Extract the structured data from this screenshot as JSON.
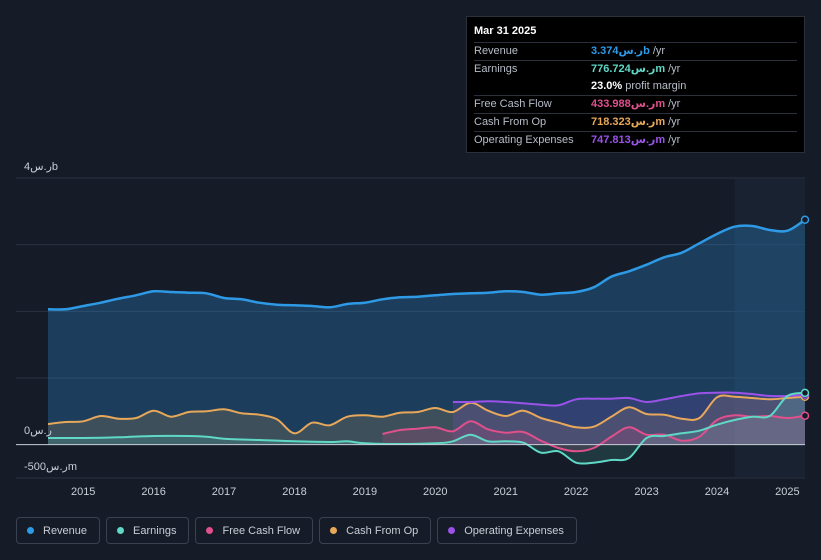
{
  "tooltip": {
    "date": "Mar 31 2025",
    "rows": [
      {
        "label": "Revenue",
        "value": "3.374ر.سb",
        "unit": "/yr",
        "color": "#2e9ae6"
      },
      {
        "label": "Earnings",
        "value": "776.724ر.سm",
        "unit": "/yr",
        "color": "#5fd9c6"
      },
      {
        "label": "",
        "value": "23.0%",
        "unit": "profit margin",
        "color": "#ffffff"
      },
      {
        "label": "Free Cash Flow",
        "value": "433.988ر.سm",
        "unit": "/yr",
        "color": "#e0508c"
      },
      {
        "label": "Cash From Op",
        "value": "718.323ر.سm",
        "unit": "/yr",
        "color": "#e8a85a"
      },
      {
        "label": "Operating Expenses",
        "value": "747.813ر.سm",
        "unit": "/yr",
        "color": "#9a52e8"
      }
    ]
  },
  "legend": [
    {
      "label": "Revenue",
      "color": "#2e9ae6"
    },
    {
      "label": "Earnings",
      "color": "#5fd9c6"
    },
    {
      "label": "Free Cash Flow",
      "color": "#e0508c"
    },
    {
      "label": "Cash From Op",
      "color": "#e8a85a"
    },
    {
      "label": "Operating Expenses",
      "color": "#9a52e8"
    }
  ],
  "chart_data": {
    "type": "line",
    "title": "",
    "xlabel": "",
    "ylabel": "",
    "y_tick_labels": [
      "4ر.سb",
      "0ر.س",
      "-500ر.سm"
    ],
    "ylim": [
      -500,
      4000
    ],
    "xlim": [
      2014.5,
      2025.25
    ],
    "x_ticks": [
      2015,
      2016,
      2017,
      2018,
      2019,
      2020,
      2021,
      2022,
      2023,
      2024,
      2025
    ],
    "x_tick_labels": [
      "2015",
      "2016",
      "2017",
      "2018",
      "2019",
      "2020",
      "2021",
      "2022",
      "2023",
      "2024",
      "2025"
    ],
    "units": "ر.سm",
    "forecast_start": 2024.25,
    "series": [
      {
        "name": "Revenue",
        "color": "#2e9ae6",
        "x": [
          2014.5,
          2014.75,
          2015.0,
          2015.25,
          2015.5,
          2015.75,
          2016.0,
          2016.25,
          2016.5,
          2016.75,
          2017.0,
          2017.25,
          2017.5,
          2017.75,
          2018.0,
          2018.25,
          2018.5,
          2018.75,
          2019.0,
          2019.25,
          2019.5,
          2019.75,
          2020.0,
          2020.25,
          2020.5,
          2020.75,
          2021.0,
          2021.25,
          2021.5,
          2021.75,
          2022.0,
          2022.25,
          2022.5,
          2022.75,
          2023.0,
          2023.25,
          2023.5,
          2023.75,
          2024.0,
          2024.25,
          2024.5,
          2024.75,
          2025.0,
          2025.25
        ],
        "values": [
          2030,
          2030,
          2080,
          2130,
          2190,
          2240,
          2300,
          2290,
          2280,
          2270,
          2200,
          2180,
          2130,
          2100,
          2090,
          2080,
          2060,
          2110,
          2130,
          2180,
          2210,
          2220,
          2240,
          2260,
          2270,
          2280,
          2300,
          2290,
          2250,
          2270,
          2290,
          2360,
          2520,
          2600,
          2700,
          2810,
          2880,
          3020,
          3160,
          3270,
          3280,
          3220,
          3210,
          3374
        ]
      },
      {
        "name": "Earnings",
        "color": "#5fd9c6",
        "x": [
          2014.5,
          2015.0,
          2015.5,
          2016.0,
          2016.5,
          2016.75,
          2017.0,
          2017.5,
          2018.0,
          2018.5,
          2018.75,
          2019.0,
          2019.5,
          2020.0,
          2020.25,
          2020.5,
          2020.75,
          2021.0,
          2021.25,
          2021.5,
          2021.75,
          2022.0,
          2022.25,
          2022.5,
          2022.75,
          2023.0,
          2023.25,
          2023.5,
          2023.75,
          2024.0,
          2024.25,
          2024.5,
          2024.75,
          2025.0,
          2025.25
        ],
        "values": [
          100,
          100,
          110,
          130,
          130,
          120,
          90,
          70,
          50,
          40,
          50,
          20,
          10,
          20,
          50,
          150,
          50,
          50,
          30,
          -120,
          -100,
          -270,
          -270,
          -230,
          -200,
          100,
          130,
          170,
          210,
          300,
          370,
          420,
          430,
          730,
          777
        ]
      },
      {
        "name": "Free Cash Flow",
        "color": "#e0508c",
        "x": [
          2019.25,
          2019.5,
          2019.75,
          2020.0,
          2020.25,
          2020.5,
          2020.75,
          2021.0,
          2021.25,
          2021.5,
          2021.75,
          2022.0,
          2022.25,
          2022.5,
          2022.75,
          2023.0,
          2023.25,
          2023.5,
          2023.75,
          2024.0,
          2024.25,
          2024.5,
          2024.75,
          2025.0,
          2025.25
        ],
        "values": [
          160,
          220,
          240,
          260,
          200,
          350,
          230,
          180,
          190,
          60,
          -50,
          -100,
          -50,
          120,
          260,
          150,
          150,
          60,
          120,
          370,
          440,
          420,
          430,
          400,
          434
        ]
      },
      {
        "name": "Cash From Op",
        "color": "#e8a85a",
        "x": [
          2014.5,
          2014.75,
          2015.0,
          2015.25,
          2015.5,
          2015.75,
          2016.0,
          2016.25,
          2016.5,
          2016.75,
          2017.0,
          2017.25,
          2017.5,
          2017.75,
          2018.0,
          2018.25,
          2018.5,
          2018.75,
          2019.0,
          2019.25,
          2019.5,
          2019.75,
          2020.0,
          2020.25,
          2020.5,
          2020.75,
          2021.0,
          2021.25,
          2021.5,
          2021.75,
          2022.0,
          2022.25,
          2022.5,
          2022.75,
          2023.0,
          2023.25,
          2023.5,
          2023.75,
          2024.0,
          2024.25,
          2024.5,
          2024.75,
          2025.0,
          2025.25
        ],
        "values": [
          310,
          340,
          350,
          430,
          390,
          400,
          510,
          420,
          490,
          500,
          530,
          470,
          450,
          380,
          170,
          330,
          290,
          420,
          440,
          420,
          480,
          490,
          550,
          490,
          630,
          510,
          430,
          510,
          400,
          330,
          260,
          270,
          420,
          560,
          460,
          450,
          390,
          400,
          710,
          720,
          700,
          680,
          700,
          718
        ]
      },
      {
        "name": "Operating Expenses",
        "color": "#9a52e8",
        "x": [
          2020.25,
          2020.5,
          2020.75,
          2021.0,
          2021.25,
          2021.5,
          2021.75,
          2022.0,
          2022.25,
          2022.5,
          2022.75,
          2023.0,
          2023.25,
          2023.5,
          2023.75,
          2024.0,
          2024.25,
          2024.5,
          2024.75,
          2025.0,
          2025.25
        ],
        "values": [
          640,
          640,
          650,
          640,
          620,
          600,
          590,
          680,
          690,
          690,
          700,
          640,
          680,
          730,
          770,
          780,
          780,
          760,
          730,
          730,
          748
        ]
      }
    ]
  }
}
